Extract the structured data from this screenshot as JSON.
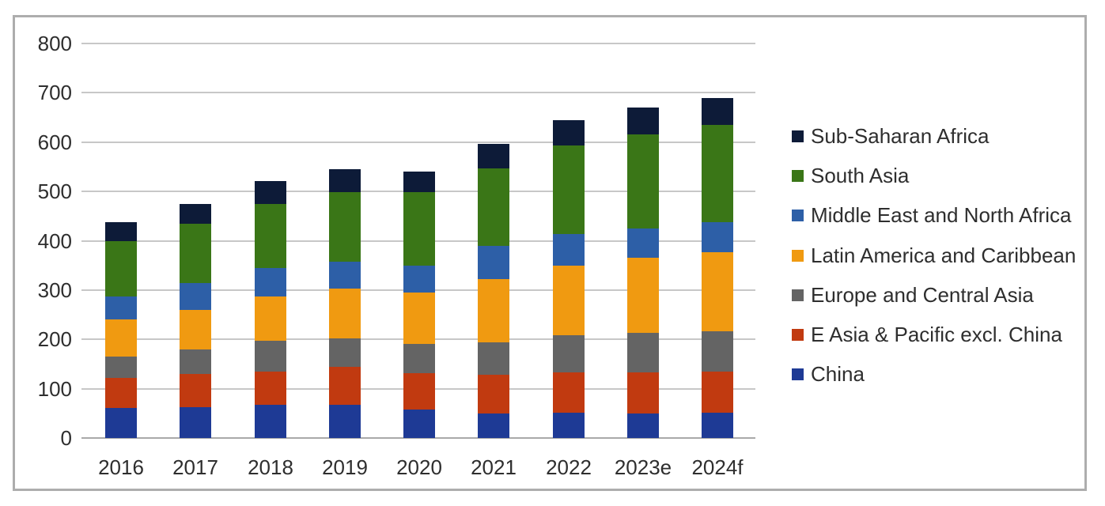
{
  "figure": {
    "background": "#ffffff",
    "border_color": "#adadad",
    "gridline_color": "#c7c7c7",
    "axis_line_color": "#a9a9a9",
    "text_color": "#2e2e2e"
  },
  "chart_data": {
    "type": "bar",
    "stacked": true,
    "title": "",
    "xlabel": "",
    "ylabel": "",
    "ylim": [
      0,
      800
    ],
    "ytick_step": 100,
    "yticks": [
      0,
      100,
      200,
      300,
      400,
      500,
      600,
      700,
      800
    ],
    "grid": true,
    "legend_position": "right",
    "categories": [
      "2016",
      "2017",
      "2018",
      "2019",
      "2020",
      "2021",
      "2022",
      "2023e",
      "2024f"
    ],
    "series": [
      {
        "name": "China",
        "color": "#1e3a95",
        "values": [
          61,
          63,
          68,
          67,
          57,
          50,
          52,
          50,
          51
        ]
      },
      {
        "name": "E Asia & Pacific excl. China",
        "color": "#c13a10",
        "values": [
          61,
          67,
          67,
          77,
          75,
          78,
          81,
          83,
          84
        ]
      },
      {
        "name": "Europe and Central Asia",
        "color": "#646464",
        "values": [
          43,
          49,
          62,
          58,
          58,
          66,
          76,
          80,
          81
        ]
      },
      {
        "name": "Latin America and Caribbean",
        "color": "#f09a11",
        "values": [
          75,
          80,
          90,
          101,
          105,
          128,
          141,
          153,
          160
        ]
      },
      {
        "name": "Middle East and North Africa",
        "color": "#2d5fa7",
        "values": [
          47,
          56,
          57,
          54,
          55,
          68,
          63,
          59,
          61
        ]
      },
      {
        "name": "South Asia",
        "color": "#3a7617",
        "values": [
          112,
          119,
          130,
          141,
          148,
          156,
          180,
          191,
          198
        ]
      },
      {
        "name": "Sub-Saharan Africa",
        "color": "#0d1b38",
        "values": [
          38,
          40,
          47,
          47,
          43,
          50,
          52,
          54,
          55
        ]
      }
    ],
    "stack_totals": [
      437,
      474,
      521,
      545,
      541,
      596,
      645,
      670,
      690
    ],
    "legend_order_top_to_bottom": [
      "Sub-Saharan Africa",
      "South Asia",
      "Middle East and North Africa",
      "Latin America and Caribbean",
      "Europe and Central Asia",
      "E Asia & Pacific excl. China",
      "China"
    ]
  }
}
